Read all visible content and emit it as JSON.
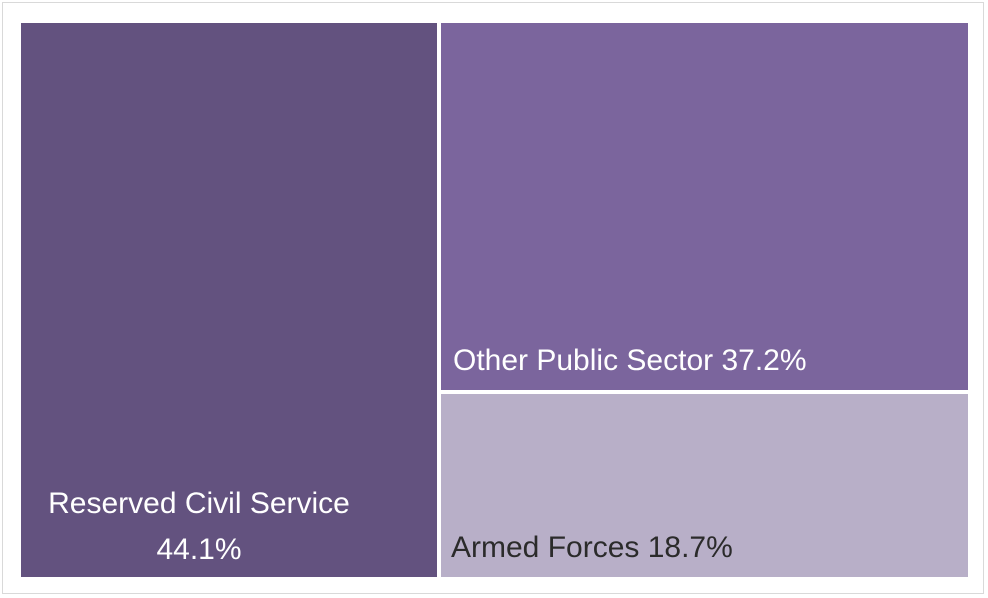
{
  "chart_data": {
    "type": "treemap",
    "title": "",
    "items": [
      {
        "label_line1": "Reserved Civil Service",
        "label_line2": "44.1%",
        "name": "Reserved Civil Service",
        "value": 44.1,
        "color": "#63527f"
      },
      {
        "label": "Other Public Sector 37.2%",
        "name": "Other Public Sector",
        "value": 37.2,
        "color": "#7b659d"
      },
      {
        "label": "Armed Forces 18.7%",
        "name": "Armed Forces",
        "value": 18.7,
        "color": "#b8afc8"
      }
    ]
  }
}
